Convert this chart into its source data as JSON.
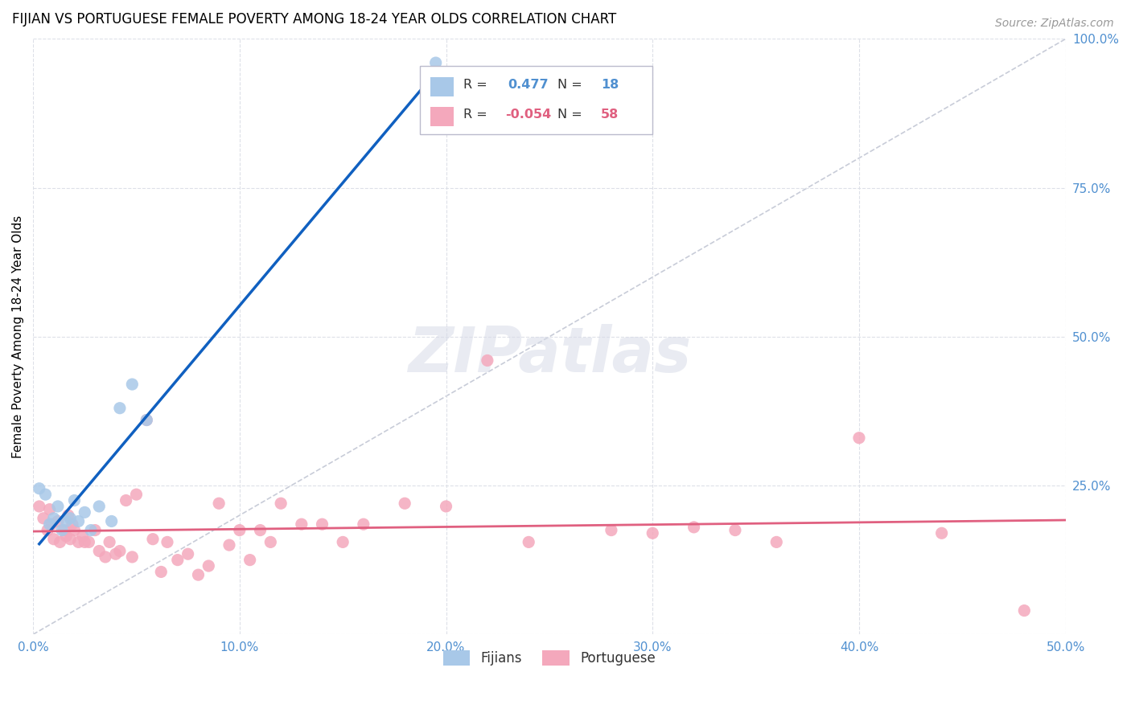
{
  "title": "FIJIAN VS PORTUGUESE FEMALE POVERTY AMONG 18-24 YEAR OLDS CORRELATION CHART",
  "source": "Source: ZipAtlas.com",
  "ylabel": "Female Poverty Among 18-24 Year Olds",
  "xlim": [
    0.0,
    0.5
  ],
  "ylim": [
    0.0,
    1.0
  ],
  "fijian_R": 0.477,
  "fijian_N": 18,
  "portuguese_R": -0.054,
  "portuguese_N": 58,
  "fijian_color": "#a8c8e8",
  "portuguese_color": "#f4a8bc",
  "fijian_line_color": "#1060c0",
  "portuguese_line_color": "#e06080",
  "diagonal_color": "#c8ccd8",
  "background_color": "#ffffff",
  "grid_color": "#dde0e8",
  "right_axis_color": "#5090d0",
  "fijian_x": [
    0.003,
    0.006,
    0.008,
    0.01,
    0.012,
    0.014,
    0.016,
    0.018,
    0.02,
    0.022,
    0.025,
    0.028,
    0.032,
    0.038,
    0.042,
    0.048,
    0.055,
    0.195
  ],
  "fijian_y": [
    0.245,
    0.235,
    0.185,
    0.195,
    0.215,
    0.175,
    0.19,
    0.195,
    0.225,
    0.19,
    0.205,
    0.175,
    0.215,
    0.19,
    0.38,
    0.42,
    0.36,
    0.96
  ],
  "portuguese_x": [
    0.003,
    0.005,
    0.007,
    0.008,
    0.009,
    0.01,
    0.012,
    0.013,
    0.015,
    0.016,
    0.017,
    0.018,
    0.019,
    0.02,
    0.022,
    0.024,
    0.025,
    0.027,
    0.03,
    0.032,
    0.035,
    0.037,
    0.04,
    0.042,
    0.045,
    0.048,
    0.05,
    0.055,
    0.058,
    0.062,
    0.065,
    0.07,
    0.075,
    0.08,
    0.085,
    0.09,
    0.095,
    0.1,
    0.105,
    0.11,
    0.115,
    0.12,
    0.13,
    0.14,
    0.15,
    0.16,
    0.18,
    0.2,
    0.22,
    0.24,
    0.28,
    0.3,
    0.32,
    0.34,
    0.36,
    0.4,
    0.44,
    0.48
  ],
  "portuguese_y": [
    0.215,
    0.195,
    0.175,
    0.21,
    0.185,
    0.16,
    0.19,
    0.155,
    0.175,
    0.165,
    0.2,
    0.16,
    0.185,
    0.175,
    0.155,
    0.165,
    0.155,
    0.155,
    0.175,
    0.14,
    0.13,
    0.155,
    0.135,
    0.14,
    0.225,
    0.13,
    0.235,
    0.36,
    0.16,
    0.105,
    0.155,
    0.125,
    0.135,
    0.1,
    0.115,
    0.22,
    0.15,
    0.175,
    0.125,
    0.175,
    0.155,
    0.22,
    0.185,
    0.185,
    0.155,
    0.185,
    0.22,
    0.215,
    0.46,
    0.155,
    0.175,
    0.17,
    0.18,
    0.175,
    0.155,
    0.33,
    0.17,
    0.04
  ]
}
